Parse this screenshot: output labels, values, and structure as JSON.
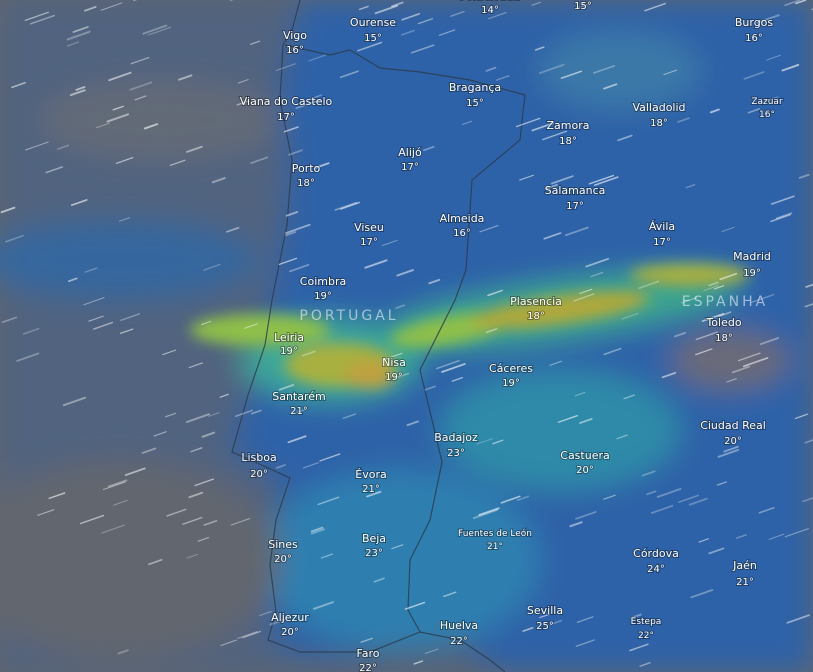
{
  "map": {
    "cities": [
      {
        "name": "Ponferrada",
        "temp": "14°"
      },
      {
        "temp": "15°"
      },
      {
        "name": "Vigo",
        "temp": "16°"
      },
      {
        "name": "Ourense",
        "temp": "15°"
      },
      {
        "name": "Burgos",
        "temp": "16°"
      },
      {
        "name": "Viana do Castelo",
        "temp": "17°"
      },
      {
        "name": "Bragança",
        "temp": "15°"
      },
      {
        "name": "Valladolid",
        "temp": "18°"
      },
      {
        "name": "Zazuar",
        "temp": "16°"
      },
      {
        "name": "Porto",
        "temp": "18°"
      },
      {
        "name": "Alijó",
        "temp": "17°"
      },
      {
        "name": "Zamora",
        "temp": "18°"
      },
      {
        "name": "Salamanca",
        "temp": "17°"
      },
      {
        "name": "Viseu",
        "temp": "17°"
      },
      {
        "name": "Almeida",
        "temp": "16°"
      },
      {
        "name": "Ávila",
        "temp": "17°"
      },
      {
        "name": "Madrid",
        "temp": "19°"
      },
      {
        "name": "Coimbra",
        "temp": "19°"
      },
      {
        "name": "Plasencia",
        "temp": "18°"
      },
      {
        "name": "Toledo",
        "temp": "18°"
      },
      {
        "name": "Leiria",
        "temp": "19°"
      },
      {
        "name": "Nisa",
        "temp": "19°"
      },
      {
        "name": "Cáceres",
        "temp": "19°"
      },
      {
        "name": "Santarém",
        "temp": "21°"
      },
      {
        "name": "Ciudad Real",
        "temp": "20°"
      },
      {
        "name": "Badajoz",
        "temp": "23°"
      },
      {
        "name": "Castuera",
        "temp": "20°"
      },
      {
        "name": "Lisboa",
        "temp": "20°"
      },
      {
        "name": "Évora",
        "temp": "21°"
      },
      {
        "name": "Fuentes de León",
        "temp": "21°"
      },
      {
        "name": "Sines",
        "temp": "20°"
      },
      {
        "name": "Beja",
        "temp": "23°"
      },
      {
        "name": "Córdova",
        "temp": "24°"
      },
      {
        "name": "Jaén",
        "temp": "21°"
      },
      {
        "name": "Aljezur",
        "temp": "20°"
      },
      {
        "name": "Sevilla",
        "temp": "25°"
      },
      {
        "name": "Estepa",
        "temp": "22°"
      },
      {
        "name": "Huelva",
        "temp": "22°"
      },
      {
        "name": "Faro",
        "temp": "22°"
      }
    ],
    "countries": [
      "PORTUGAL",
      "ESPANHA"
    ]
  }
}
